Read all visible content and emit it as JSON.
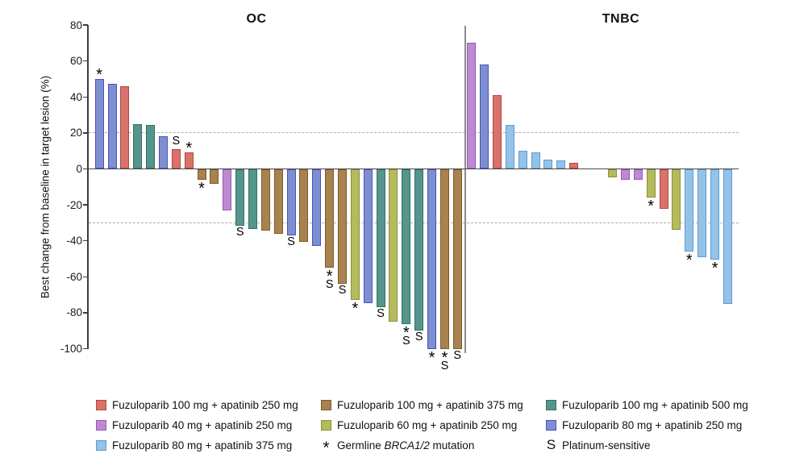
{
  "figure": {
    "section_titles": {
      "left": "OC",
      "right": "TNBC"
    },
    "y_axis": {
      "label": "Best change from baseline in target lesion (%)",
      "ticks": [
        80,
        60,
        40,
        20,
        0,
        -20,
        -40,
        -60,
        -80,
        -100
      ],
      "max": 80,
      "min": -100
    },
    "reference_lines": [
      20,
      -30
    ]
  },
  "colors": {
    "red": {
      "fill": "#D9726B",
      "stroke": "#B4453E"
    },
    "orchid": {
      "fill": "#BD8AD2",
      "stroke": "#9A55BC"
    },
    "lightblue": {
      "fill": "#94C3E7",
      "stroke": "#5C9BD4"
    },
    "brown": {
      "fill": "#A8824F",
      "stroke": "#7D5B28"
    },
    "yellow": {
      "fill": "#B6BA5E",
      "stroke": "#8C9133"
    },
    "teal": {
      "fill": "#55958B",
      "stroke": "#2F7265"
    },
    "blue": {
      "fill": "#7E8FD0",
      "stroke": "#4A50C4"
    }
  },
  "chart_data": {
    "type": "bar",
    "subtype": "waterfall",
    "ylabel": "Best change from baseline in target lesion (%)",
    "ylim": [
      -100,
      80
    ],
    "reference_lines": [
      20,
      -30
    ],
    "grid": false,
    "marks_legend": {
      "*": "Germline BRCA1/2 mutation",
      "S": "Platinum-sensitive"
    },
    "groups": [
      {
        "name": "OC",
        "bars": [
          {
            "value": 50,
            "color": "blue",
            "marks": "*"
          },
          {
            "value": 47.5,
            "color": "blue",
            "marks": ""
          },
          {
            "value": 46,
            "color": "red",
            "marks": ""
          },
          {
            "value": 25,
            "color": "teal",
            "marks": ""
          },
          {
            "value": 24.5,
            "color": "teal",
            "marks": ""
          },
          {
            "value": 18,
            "color": "blue",
            "marks": ""
          },
          {
            "value": 11,
            "color": "red",
            "marks": "S"
          },
          {
            "value": 9,
            "color": "red",
            "marks": "*"
          },
          {
            "value": -6,
            "color": "brown",
            "marks": "*"
          },
          {
            "value": -8.5,
            "color": "brown",
            "marks": ""
          },
          {
            "value": -23,
            "color": "orchid",
            "marks": ""
          },
          {
            "value": -31.5,
            "color": "teal",
            "marks": "S"
          },
          {
            "value": -33.5,
            "color": "teal",
            "marks": ""
          },
          {
            "value": -34.5,
            "color": "brown",
            "marks": ""
          },
          {
            "value": -36,
            "color": "brown",
            "marks": ""
          },
          {
            "value": -37,
            "color": "blue",
            "marks": "S"
          },
          {
            "value": -40.5,
            "color": "brown",
            "marks": ""
          },
          {
            "value": -43,
            "color": "blue",
            "marks": ""
          },
          {
            "value": -55,
            "color": "brown",
            "marks": "*S"
          },
          {
            "value": -64,
            "color": "brown",
            "marks": "S"
          },
          {
            "value": -73,
            "color": "yellow",
            "marks": "*"
          },
          {
            "value": -74.5,
            "color": "blue",
            "marks": ""
          },
          {
            "value": -77,
            "color": "teal",
            "marks": "S"
          },
          {
            "value": -85,
            "color": "yellow",
            "marks": ""
          },
          {
            "value": -86.5,
            "color": "teal",
            "marks": "*S"
          },
          {
            "value": -90,
            "color": "teal",
            "marks": "S"
          },
          {
            "value": -100,
            "color": "blue",
            "marks": "*"
          },
          {
            "value": -100,
            "color": "brown",
            "marks": "*S"
          },
          {
            "value": -100,
            "color": "brown",
            "marks": "S"
          }
        ]
      },
      {
        "name": "TNBC",
        "bars": [
          {
            "value": 70,
            "color": "orchid",
            "marks": ""
          },
          {
            "value": 58,
            "color": "blue",
            "marks": ""
          },
          {
            "value": 41,
            "color": "red",
            "marks": ""
          },
          {
            "value": 24.5,
            "color": "lightblue",
            "marks": ""
          },
          {
            "value": 10,
            "color": "lightblue",
            "marks": ""
          },
          {
            "value": 9,
            "color": "lightblue",
            "marks": ""
          },
          {
            "value": 5,
            "color": "lightblue",
            "marks": ""
          },
          {
            "value": 4.5,
            "color": "lightblue",
            "marks": ""
          },
          {
            "value": 3.5,
            "color": "red",
            "marks": ""
          },
          {
            "value": 0,
            "color": null,
            "marks": ""
          },
          {
            "value": 0,
            "color": null,
            "marks": ""
          },
          {
            "value": -4.5,
            "color": "yellow",
            "marks": ""
          },
          {
            "value": -6,
            "color": "orchid",
            "marks": ""
          },
          {
            "value": -6,
            "color": "orchid",
            "marks": ""
          },
          {
            "value": -16,
            "color": "yellow",
            "marks": "*"
          },
          {
            "value": -22,
            "color": "red",
            "marks": ""
          },
          {
            "value": -34,
            "color": "yellow",
            "marks": ""
          },
          {
            "value": -46,
            "color": "lightblue",
            "marks": "*"
          },
          {
            "value": -49,
            "color": "lightblue",
            "marks": ""
          },
          {
            "value": -50.5,
            "color": "lightblue",
            "marks": "*"
          },
          {
            "value": -75,
            "color": "lightblue",
            "marks": ""
          }
        ]
      }
    ]
  },
  "legend": {
    "columns": [
      [
        {
          "color": "red",
          "label": "Fuzuloparib 100 mg + apatinib 250 mg"
        },
        {
          "color": "orchid",
          "label": "Fuzuloparib 40 mg + apatinib 250 mg"
        },
        {
          "color": "lightblue",
          "label": "Fuzuloparib 80 mg + apatinib 375 mg"
        }
      ],
      [
        {
          "color": "brown",
          "label": "Fuzuloparib 100 mg + apatinib 375 mg"
        },
        {
          "color": "yellow",
          "label": "Fuzuloparib 60 mg + apatinib 250 mg"
        },
        {
          "symbol": "*",
          "parts": [
            {
              "text": "Germline "
            },
            {
              "text": "BRCA1/2",
              "italic": true
            },
            {
              "text": " mutation"
            }
          ]
        }
      ],
      [
        {
          "color": "teal",
          "label": "Fuzuloparib 100 mg + apatinib 500 mg"
        },
        {
          "color": "blue",
          "label": "Fuzuloparib 80 mg + apatinib 250 mg"
        },
        {
          "symbol": "S",
          "label": "Platinum-sensitive"
        }
      ]
    ]
  }
}
